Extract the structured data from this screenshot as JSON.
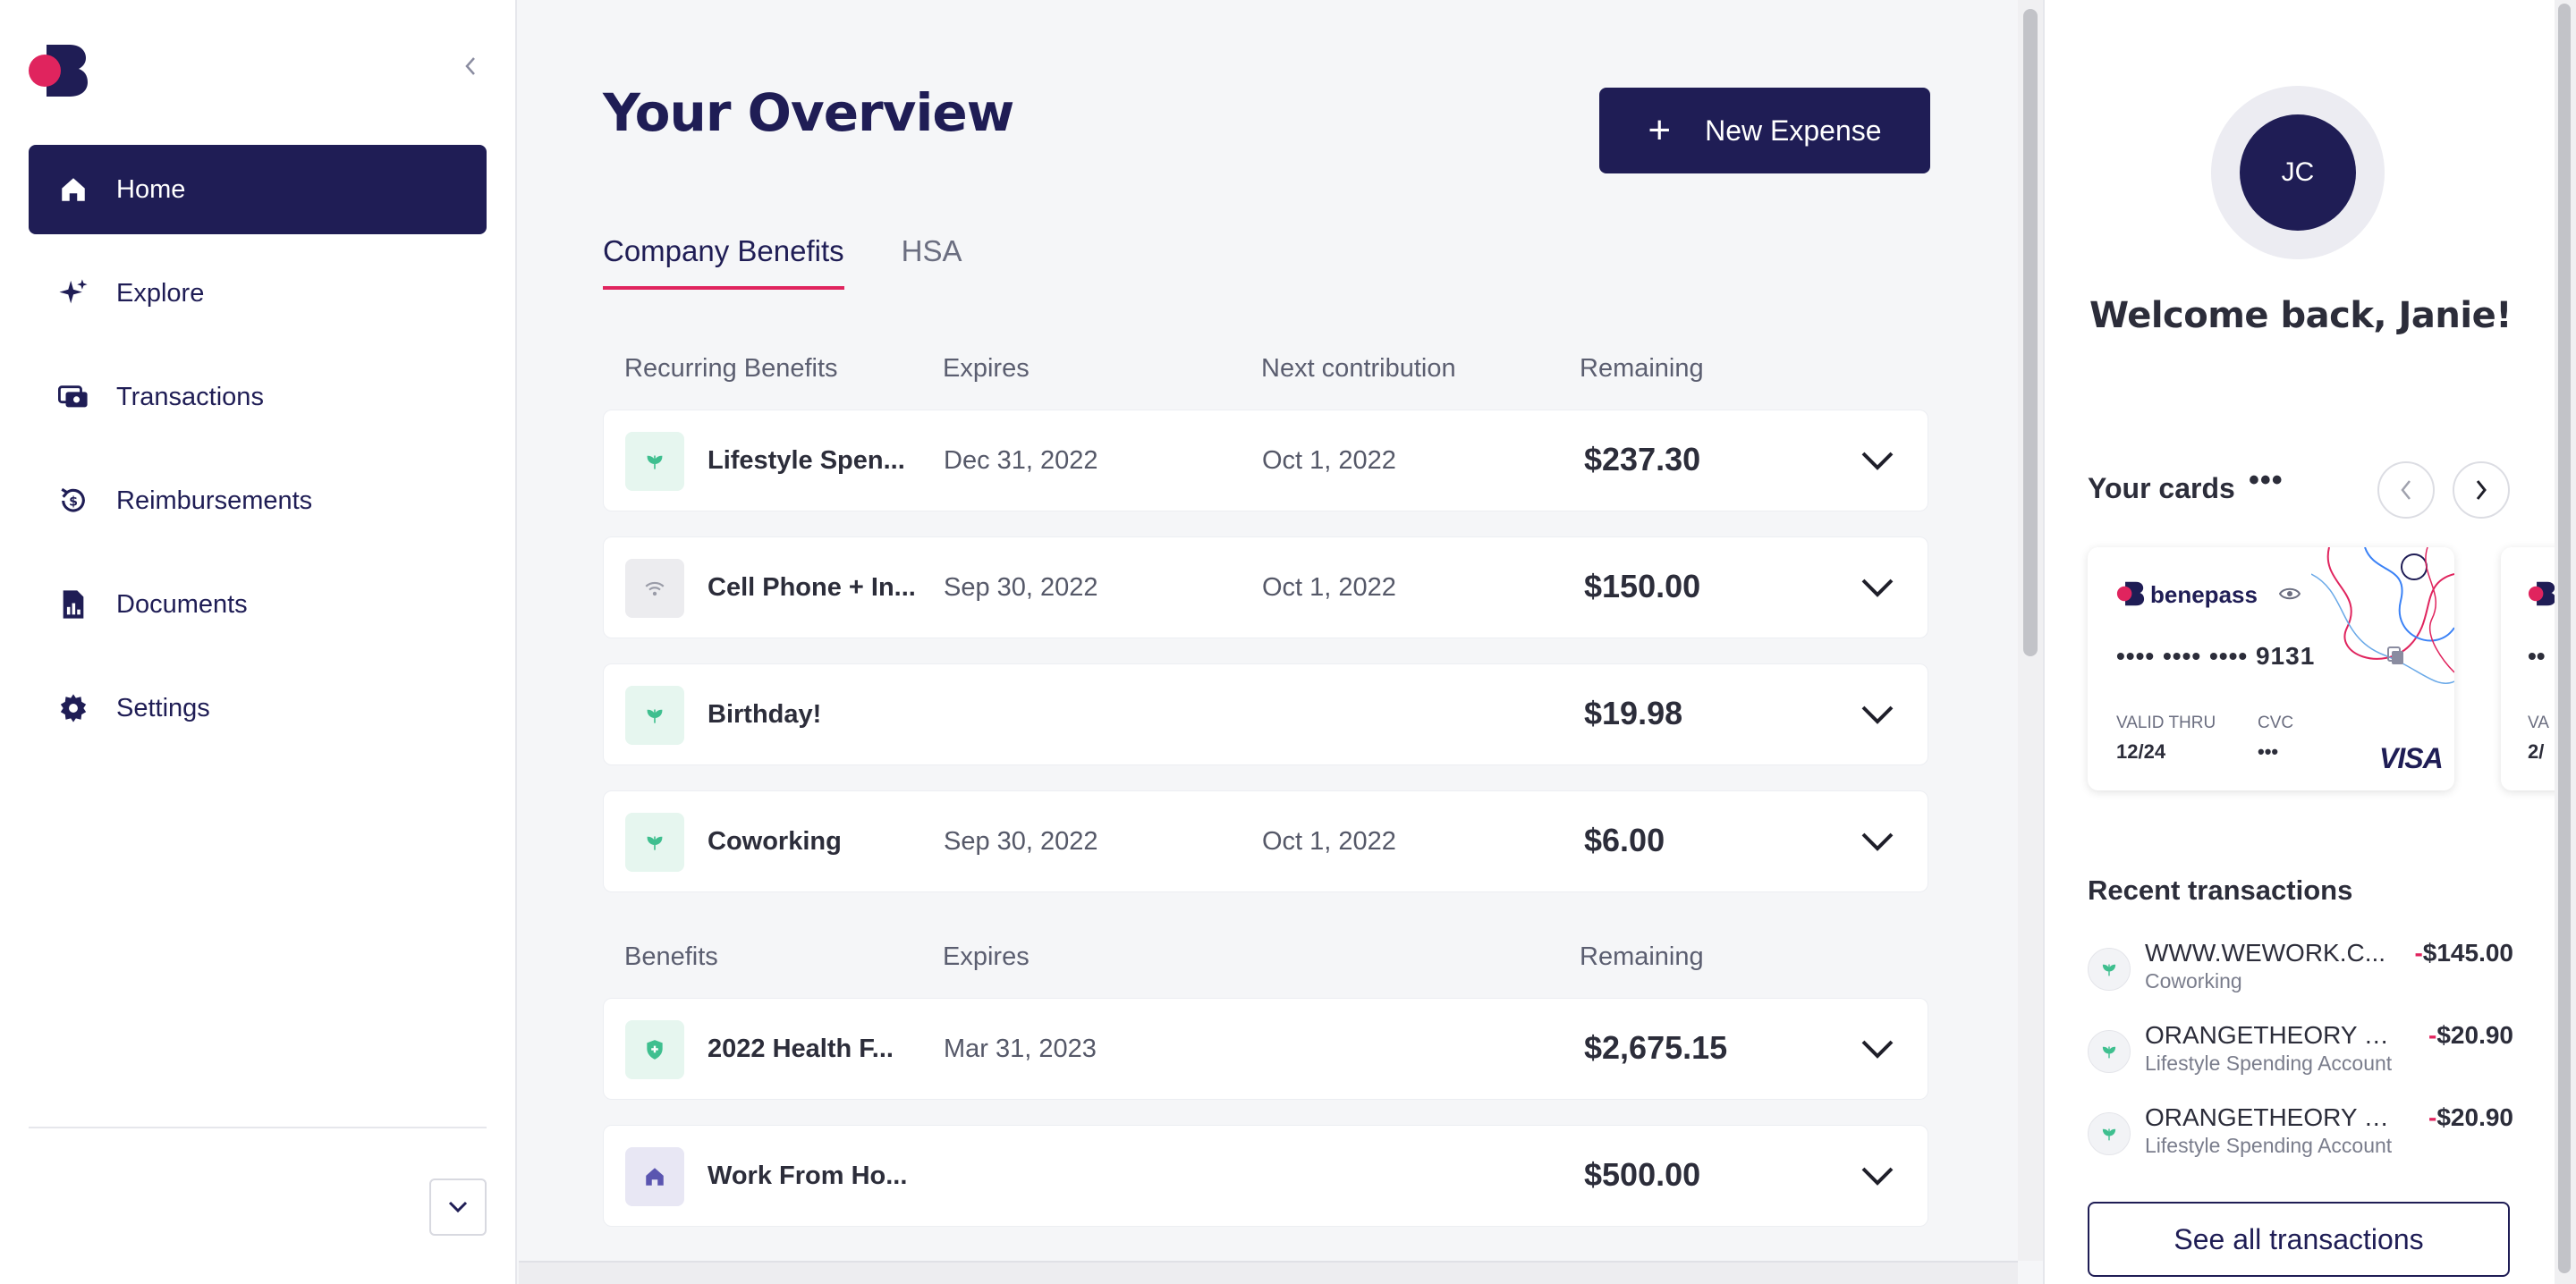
{
  "sidebar": {
    "collapse_icon": "chevron-left-icon",
    "items": [
      {
        "label": "Home",
        "icon": "home-icon",
        "active": true
      },
      {
        "label": "Explore",
        "icon": "sparkle-icon"
      },
      {
        "label": "Transactions",
        "icon": "cash-icon"
      },
      {
        "label": "Reimbursements",
        "icon": "refund-icon"
      },
      {
        "label": "Documents",
        "icon": "document-icon"
      },
      {
        "label": "Settings",
        "icon": "gear-icon"
      }
    ]
  },
  "main": {
    "title": "Your Overview",
    "new_expense_label": "New Expense",
    "tabs": [
      {
        "label": "Company Benefits",
        "active": true
      },
      {
        "label": "HSA"
      }
    ],
    "recurring": {
      "headers": {
        "name": "Recurring Benefits",
        "expires": "Expires",
        "next": "Next contribution",
        "remaining": "Remaining"
      },
      "rows": [
        {
          "name": "Lifestyle Spen...",
          "expires": "Dec 31, 2022",
          "next": "Oct 1, 2022",
          "remaining": "$237.30",
          "icon": "leaf-icon"
        },
        {
          "name": "Cell Phone + In...",
          "expires": "Sep 30, 2022",
          "next": "Oct 1, 2022",
          "remaining": "$150.00",
          "icon": "wifi-icon"
        },
        {
          "name": "Birthday!",
          "expires": "",
          "next": "",
          "remaining": "$19.98",
          "icon": "leaf-icon"
        },
        {
          "name": "Coworking",
          "expires": "Sep 30, 2022",
          "next": "Oct 1, 2022",
          "remaining": "$6.00",
          "icon": "leaf-icon"
        }
      ]
    },
    "benefits": {
      "headers": {
        "name": "Benefits",
        "expires": "Expires",
        "remaining": "Remaining"
      },
      "rows": [
        {
          "name": "2022 Health F...",
          "expires": "Mar 31, 2023",
          "remaining": "$2,675.15",
          "icon": "shield-icon"
        },
        {
          "name": "Work From Ho...",
          "expires": "",
          "remaining": "$500.00",
          "icon": "house-icon"
        }
      ]
    }
  },
  "right": {
    "avatar_initials": "JC",
    "welcome": "Welcome back, Janie!",
    "cards_title": "Your cards",
    "card": {
      "brand": "benepass",
      "masked": "•••• •••• •••• 9131",
      "valid_thru_label": "VALID THRU",
      "valid_thru": "12/24",
      "cvc_label": "CVC",
      "cvc": "•••",
      "network": "VISA"
    },
    "card2": {
      "masked": "••",
      "valid_label": "VA",
      "valid": "2/"
    },
    "recent_title": "Recent transactions",
    "transactions": [
      {
        "merchant": "WWW.WEWORK.C...",
        "category": "Coworking",
        "sign": "-",
        "amount": "$145.00"
      },
      {
        "merchant": "ORANGETHEORY M...",
        "category": "Lifestyle Spending Account",
        "sign": "-",
        "amount": "$20.90"
      },
      {
        "merchant": "ORANGETHEORY M...",
        "category": "Lifestyle Spending Account",
        "sign": "-",
        "amount": "$20.90"
      }
    ],
    "see_all_label": "See all transactions"
  },
  "colors": {
    "navy": "#1f1d55",
    "accent": "#e0245e",
    "mint": "#3fbf8f"
  }
}
